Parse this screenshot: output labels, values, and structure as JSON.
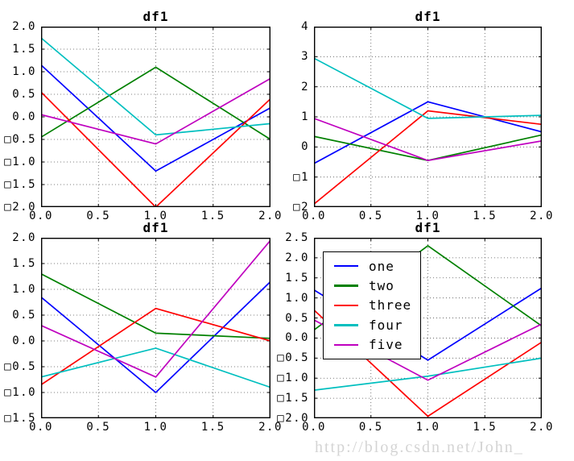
{
  "watermark": "http://blog.csdn.net/John_",
  "colors": {
    "one": "#0000ff",
    "two": "#008000",
    "three": "#ff0000",
    "four": "#00bfbf",
    "five": "#bf00bf",
    "grid": "#555555",
    "axis": "#000000",
    "watermark": "#d4d4d4"
  },
  "legend": {
    "location": "upper-left-of-bottom-right-subplot",
    "entries": [
      {
        "label": "one",
        "color": "#0000ff"
      },
      {
        "label": "two",
        "color": "#008000"
      },
      {
        "label": "three",
        "color": "#ff0000"
      },
      {
        "label": "four",
        "color": "#00bfbf"
      },
      {
        "label": "five",
        "color": "#bf00bf"
      }
    ]
  },
  "chart_data": [
    {
      "id": "top-left",
      "type": "line",
      "title": "df1",
      "x": [
        0,
        1,
        2
      ],
      "xlim": [
        0,
        2
      ],
      "ylim": [
        -2,
        2
      ],
      "grid": true,
      "xtick_labels": [
        "0.0",
        "0.5",
        "1.0",
        "1.5",
        "2.0"
      ],
      "xtick_values": [
        0,
        0.5,
        1,
        1.5,
        2
      ],
      "ytick_labels": [
        "2.0",
        "1.5",
        "1.0",
        "0.5",
        "0.0",
        "□0.5",
        "□1.0",
        "□1.5",
        "□2.0"
      ],
      "ytick_values": [
        2,
        1.5,
        1,
        0.5,
        0,
        -0.5,
        -1,
        -1.5,
        -2
      ],
      "show_legend": false,
      "series": [
        {
          "name": "one",
          "color": "#0000ff",
          "values": [
            1.15,
            -1.2,
            0.2
          ]
        },
        {
          "name": "two",
          "color": "#008000",
          "values": [
            -0.45,
            1.1,
            -0.5
          ]
        },
        {
          "name": "three",
          "color": "#ff0000",
          "values": [
            0.55,
            -2.0,
            0.4
          ]
        },
        {
          "name": "four",
          "color": "#00bfbf",
          "values": [
            1.75,
            -0.4,
            -0.15
          ]
        },
        {
          "name": "five",
          "color": "#bf00bf",
          "values": [
            0.05,
            -0.6,
            0.85
          ]
        }
      ]
    },
    {
      "id": "top-right",
      "type": "line",
      "title": "df1",
      "x": [
        0,
        1,
        2
      ],
      "xlim": [
        0,
        2
      ],
      "ylim": [
        -2,
        4
      ],
      "grid": true,
      "xtick_labels": [
        "0.0",
        "0.5",
        "1.0",
        "1.5",
        "2.0"
      ],
      "xtick_values": [
        0,
        0.5,
        1,
        1.5,
        2
      ],
      "ytick_labels": [
        "4",
        "3",
        "2",
        "1",
        "0",
        "□1",
        "□2"
      ],
      "ytick_values": [
        4,
        3,
        2,
        1,
        0,
        -1,
        -2
      ],
      "show_legend": false,
      "series": [
        {
          "name": "one",
          "color": "#0000ff",
          "values": [
            -0.55,
            1.5,
            0.5
          ]
        },
        {
          "name": "two",
          "color": "#008000",
          "values": [
            0.35,
            -0.45,
            0.4
          ]
        },
        {
          "name": "three",
          "color": "#ff0000",
          "values": [
            -1.9,
            1.2,
            0.75
          ]
        },
        {
          "name": "four",
          "color": "#00bfbf",
          "values": [
            2.95,
            0.95,
            1.05
          ]
        },
        {
          "name": "five",
          "color": "#bf00bf",
          "values": [
            0.95,
            -0.45,
            0.2
          ]
        }
      ]
    },
    {
      "id": "bottom-left",
      "type": "line",
      "title": "df1",
      "x": [
        0,
        1,
        2
      ],
      "xlim": [
        0,
        2
      ],
      "ylim": [
        -1.5,
        2
      ],
      "grid": true,
      "xtick_labels": [
        "0.0",
        "0.5",
        "1.0",
        "1.5",
        "2.0"
      ],
      "xtick_values": [
        0,
        0.5,
        1,
        1.5,
        2
      ],
      "ytick_labels": [
        "2.0",
        "1.5",
        "1.0",
        "0.5",
        "0.0",
        "□0.5",
        "□1.0",
        "□1.5"
      ],
      "ytick_values": [
        2,
        1.5,
        1,
        0.5,
        0,
        -0.5,
        -1,
        -1.5
      ],
      "show_legend": false,
      "series": [
        {
          "name": "one",
          "color": "#0000ff",
          "values": [
            0.85,
            -1.0,
            1.15
          ]
        },
        {
          "name": "two",
          "color": "#008000",
          "values": [
            1.3,
            0.15,
            0.05
          ]
        },
        {
          "name": "three",
          "color": "#ff0000",
          "values": [
            -0.85,
            0.63,
            0.0
          ]
        },
        {
          "name": "four",
          "color": "#00bfbf",
          "values": [
            -0.7,
            -0.14,
            -0.9
          ]
        },
        {
          "name": "five",
          "color": "#bf00bf",
          "values": [
            0.3,
            -0.7,
            1.95
          ]
        }
      ]
    },
    {
      "id": "bottom-right",
      "type": "line",
      "title": "df1",
      "x": [
        0,
        1,
        2
      ],
      "xlim": [
        0,
        2
      ],
      "ylim": [
        -2,
        2.5
      ],
      "grid": true,
      "xtick_labels": [
        "0.0",
        "0.5",
        "1.0",
        "1.5",
        "2.0"
      ],
      "xtick_values": [
        0,
        0.5,
        1,
        1.5,
        2
      ],
      "ytick_labels": [
        "2.5",
        "2.0",
        "1.5",
        "1.0",
        "0.5",
        "0.0",
        "□0.5",
        "□1.0",
        "□1.5",
        "□2.0"
      ],
      "ytick_values": [
        2.5,
        2,
        1.5,
        1,
        0.5,
        0,
        -0.5,
        -1,
        -1.5,
        -2
      ],
      "show_legend": true,
      "series": [
        {
          "name": "one",
          "color": "#0000ff",
          "values": [
            1.2,
            -0.55,
            1.25
          ]
        },
        {
          "name": "two",
          "color": "#008000",
          "values": [
            0.2,
            2.3,
            0.3
          ]
        },
        {
          "name": "three",
          "color": "#ff0000",
          "values": [
            0.7,
            -1.95,
            -0.1
          ]
        },
        {
          "name": "four",
          "color": "#00bfbf",
          "values": [
            -1.3,
            -0.95,
            -0.5
          ]
        },
        {
          "name": "five",
          "color": "#bf00bf",
          "values": [
            0.45,
            -1.05,
            0.35
          ]
        }
      ]
    }
  ]
}
